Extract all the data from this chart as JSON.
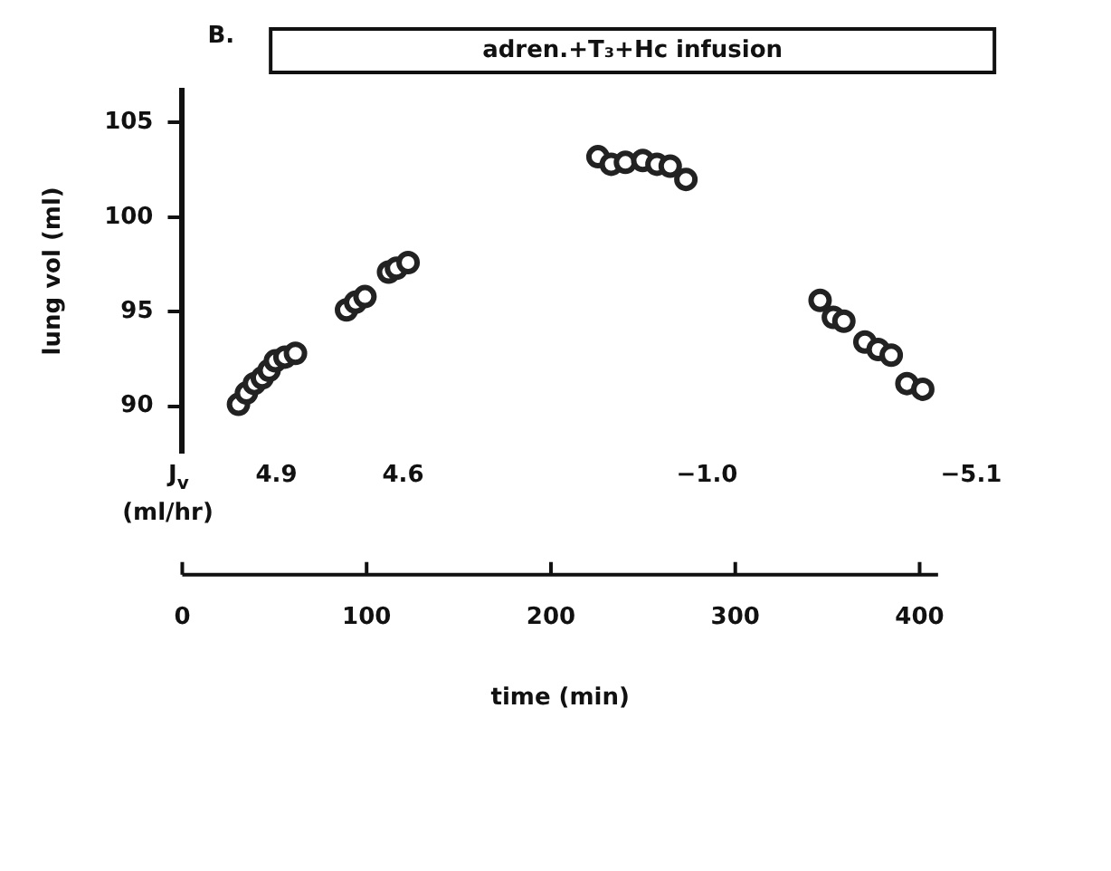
{
  "chart_data": {
    "type": "scatter",
    "title": "adren.+T₃+Hc infusion",
    "xlabel": "time (min)",
    "ylabel": "lung vol (ml)",
    "x": [
      30.5,
      34.8,
      39.1,
      43.4,
      47.1,
      50.5,
      55.7,
      61.4,
      89.1,
      94,
      99.1,
      111.9,
      116.2,
      122.5,
      225.5,
      232.7,
      240.4,
      249.8,
      257.5,
      264.7,
      273.2,
      346,
      353.2,
      358.9,
      370.3,
      377.5,
      384.6,
      393.1,
      401.7
    ],
    "series": [
      {
        "color": "#222222",
        "values": [
          90.1,
          90.7,
          91.2,
          91.5,
          91.9,
          92.4,
          92.6,
          92.8,
          95.1,
          95.5,
          95.8,
          97.1,
          97.3,
          97.6,
          103.2,
          102.8,
          102.9,
          103.0,
          102.8,
          102.7,
          102.0,
          95.6,
          94.7,
          94.5,
          93.4,
          93.0,
          92.7,
          91.2,
          90.9
        ]
      }
    ],
    "xlim": [
      0,
      410
    ],
    "ylim": [
      87.6,
      106.7
    ],
    "xticks": [
      0,
      100,
      200,
      300,
      400
    ],
    "yticks": [
      90,
      95,
      100,
      105
    ],
    "grid": false,
    "legend": false,
    "marker": "circle",
    "annotations": [
      "B.",
      "J$_{v}$",
      "(ml/hr)",
      "4.9",
      "4.6",
      "−1.0",
      "−5.1"
    ]
  }
}
